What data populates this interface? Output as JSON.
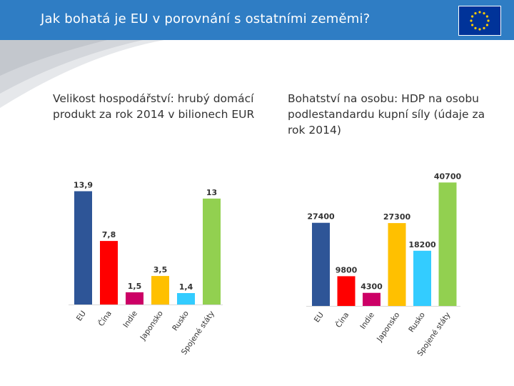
{
  "header": {
    "title": "Jak bohatá je EU v porovnání s ostatními zeměmi?",
    "accent_color": "#2f7dc4",
    "flag_icon": "eu-flag-icon"
  },
  "captions": {
    "left": "Velikost hospodářství: hrubý domácí produkt za rok 2014 v bilionech EUR",
    "right": "Bohatství na osobu: HDP na osobu podlestandardu kupní síly (údaje za rok 2014)"
  },
  "chart_data": [
    {
      "type": "bar",
      "categories": [
        "EU",
        "Čína",
        "Indie",
        "Japonsko",
        "Rusko",
        "Spojené státy"
      ],
      "values": [
        13.9,
        7.8,
        1.5,
        3.5,
        1.4,
        13
      ],
      "data_labels": [
        "13,9",
        "7,8",
        "1,5",
        "3,5",
        "1,4",
        "13"
      ],
      "colors": [
        "#2e5597",
        "#ff0000",
        "#cc0066",
        "#ffc000",
        "#33ccff",
        "#92d050"
      ],
      "ylim": [
        0,
        15
      ],
      "grid": false
    },
    {
      "type": "bar",
      "categories": [
        "EU",
        "Čína",
        "Indie",
        "Japonsko",
        "Rusko",
        "Spojené státy"
      ],
      "values": [
        27400,
        9800,
        4300,
        27300,
        18200,
        40700
      ],
      "data_labels": [
        "27400",
        "9800",
        "4300",
        "27300",
        "18200",
        "40700"
      ],
      "colors": [
        "#2e5597",
        "#ff0000",
        "#cc0066",
        "#ffc000",
        "#33ccff",
        "#92d050"
      ],
      "ylim": [
        0,
        45000
      ],
      "grid": false
    }
  ]
}
